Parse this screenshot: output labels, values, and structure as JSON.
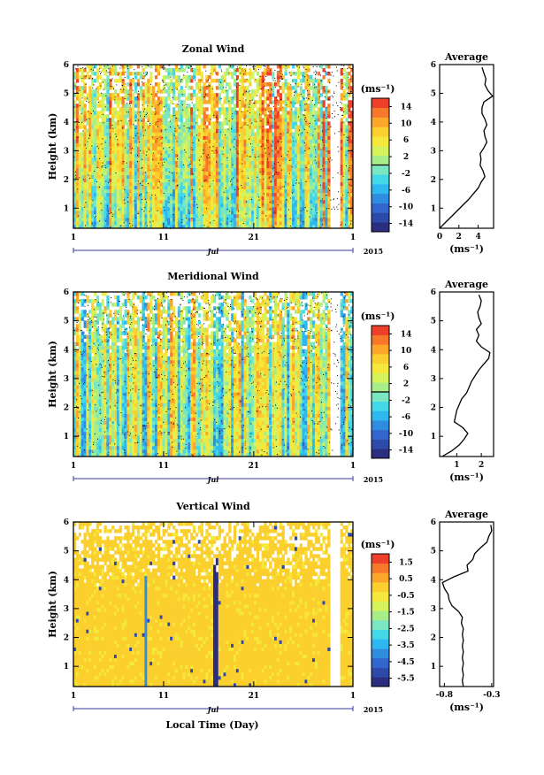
{
  "figure": {
    "xlabel": "Local Time (Day)",
    "year": "2015",
    "month": "Jul",
    "ylabel": "Height (km)"
  },
  "chart_data": [
    {
      "type": "heatmap",
      "title": "Zonal Wind",
      "xlabel": "",
      "ylabel": "Height (km)",
      "x_ticks": [
        "1",
        "11",
        "21",
        "1"
      ],
      "y_ticks": [
        "1",
        "2",
        "3",
        "4",
        "5",
        "6"
      ],
      "xlim": [
        1,
        32
      ],
      "ylim": [
        0.3,
        6
      ],
      "colorbar": {
        "unit": "(ms⁻¹)",
        "ticks": [
          "14",
          "10",
          "6",
          "2",
          "-2",
          "-6",
          "-10",
          "-14"
        ],
        "range": [
          -16,
          16
        ],
        "zero_line": 0,
        "colors": [
          "#2b2e7e",
          "#2e4aa8",
          "#3366cc",
          "#2f8de0",
          "#2fb7f0",
          "#43d8e8",
          "#7ae6c2",
          "#a8ee88",
          "#d6f25c",
          "#f5e83a",
          "#fbcf2d",
          "#fca62a",
          "#f8782b",
          "#ee3f2b"
        ]
      },
      "field_bias": 6,
      "field_spread": 9,
      "profile": {
        "title": "Average",
        "xlabel": "(ms⁻¹)",
        "x_ticks": [
          "0",
          "2",
          "4"
        ],
        "xlim": [
          0,
          5.6
        ],
        "ylim": [
          0.3,
          6
        ],
        "heights": [
          0.3,
          0.5,
          0.7,
          0.9,
          1.1,
          1.3,
          1.5,
          1.7,
          1.9,
          2.1,
          2.3,
          2.5,
          2.7,
          2.9,
          3.1,
          3.3,
          3.5,
          3.7,
          3.9,
          4.1,
          4.3,
          4.5,
          4.7,
          4.9,
          5.1,
          5.3,
          5.5,
          5.7,
          5.9
        ],
        "values": [
          0.0,
          0.6,
          1.2,
          1.8,
          2.4,
          3.0,
          3.5,
          4.0,
          4.3,
          4.7,
          4.5,
          4.2,
          4.3,
          4.2,
          4.6,
          4.9,
          4.7,
          4.6,
          4.9,
          4.7,
          4.4,
          4.4,
          4.6,
          5.5,
          5.0,
          4.7,
          4.8,
          4.6,
          4.4
        ]
      }
    },
    {
      "type": "heatmap",
      "title": "Meridional Wind",
      "xlabel": "",
      "ylabel": "Height (km)",
      "x_ticks": [
        "1",
        "11",
        "21",
        "1"
      ],
      "y_ticks": [
        "1",
        "2",
        "3",
        "4",
        "5",
        "6"
      ],
      "xlim": [
        1,
        32
      ],
      "ylim": [
        0.3,
        6
      ],
      "colorbar": {
        "unit": "(ms⁻¹)",
        "ticks": [
          "14",
          "10",
          "6",
          "2",
          "-2",
          "-6",
          "-10",
          "-14"
        ],
        "range": [
          -16,
          16
        ],
        "zero_line": 0,
        "colors": [
          "#2b2e7e",
          "#2e4aa8",
          "#3366cc",
          "#2f8de0",
          "#2fb7f0",
          "#43d8e8",
          "#7ae6c2",
          "#a8ee88",
          "#d6f25c",
          "#f5e83a",
          "#fbcf2d",
          "#fca62a",
          "#f8782b",
          "#ee3f2b"
        ]
      },
      "field_bias": 2,
      "field_spread": 8,
      "profile": {
        "title": "Average",
        "xlabel": "(ms⁻¹)",
        "x_ticks": [
          "1",
          "2"
        ],
        "xlim": [
          0.3,
          2.5
        ],
        "ylim": [
          0.3,
          6
        ],
        "heights": [
          0.3,
          0.5,
          0.7,
          0.9,
          1.1,
          1.3,
          1.5,
          1.7,
          1.9,
          2.1,
          2.3,
          2.5,
          2.7,
          2.9,
          3.1,
          3.3,
          3.5,
          3.7,
          3.9,
          4.1,
          4.3,
          4.5,
          4.7,
          4.9,
          5.1,
          5.3,
          5.5,
          5.7,
          5.9
        ],
        "values": [
          0.4,
          0.8,
          1.1,
          1.3,
          1.45,
          1.25,
          0.9,
          0.95,
          1.0,
          1.1,
          1.2,
          1.4,
          1.5,
          1.6,
          1.75,
          1.9,
          2.1,
          2.3,
          2.35,
          2.0,
          1.8,
          1.9,
          1.8,
          2.0,
          1.9,
          1.85,
          1.95,
          2.0,
          1.9
        ]
      }
    },
    {
      "type": "heatmap",
      "title": "Vertical Wind",
      "xlabel": "Local Time (Day)",
      "ylabel": "Height (km)",
      "x_ticks": [
        "1",
        "11",
        "21",
        "1"
      ],
      "y_ticks": [
        "1",
        "2",
        "3",
        "4",
        "5",
        "6"
      ],
      "xlim": [
        1,
        32
      ],
      "ylim": [
        0.3,
        6
      ],
      "colorbar": {
        "unit": "(ms⁻¹)",
        "ticks": [
          "1.5",
          "0.5",
          "-0.5",
          "-1.5",
          "-2.5",
          "-3.5",
          "-4.5",
          "-5.5"
        ],
        "range": [
          -6,
          2
        ],
        "zero_line": null,
        "colors": [
          "#2b2e7e",
          "#2e4aa8",
          "#3366cc",
          "#2f8de0",
          "#2fb7f0",
          "#43d8e8",
          "#7ae6c2",
          "#a8ee88",
          "#d6f25c",
          "#f5e83a",
          "#fbcf2d",
          "#fca62a",
          "#f8782b",
          "#ee3f2b"
        ]
      },
      "field_bias": 0,
      "field_spread": 0,
      "profile": {
        "title": "Average",
        "xlabel": "(ms⁻¹)",
        "x_ticks": [
          "-0.8",
          "-0.3"
        ],
        "xlim": [
          -0.85,
          -0.28
        ],
        "ylim": [
          0.3,
          6
        ],
        "heights": [
          0.3,
          0.5,
          0.7,
          0.9,
          1.1,
          1.3,
          1.5,
          1.7,
          1.9,
          2.1,
          2.3,
          2.5,
          2.7,
          2.9,
          3.1,
          3.3,
          3.5,
          3.7,
          3.9,
          4.1,
          4.3,
          4.5,
          4.7,
          4.9,
          5.1,
          5.3,
          5.5,
          5.7,
          5.9
        ],
        "values": [
          -0.6,
          -0.61,
          -0.6,
          -0.61,
          -0.6,
          -0.61,
          -0.6,
          -0.61,
          -0.6,
          -0.61,
          -0.6,
          -0.62,
          -0.61,
          -0.65,
          -0.72,
          -0.75,
          -0.76,
          -0.8,
          -0.82,
          -0.7,
          -0.55,
          -0.56,
          -0.5,
          -0.48,
          -0.42,
          -0.35,
          -0.33,
          -0.3,
          -0.31
        ]
      }
    }
  ]
}
